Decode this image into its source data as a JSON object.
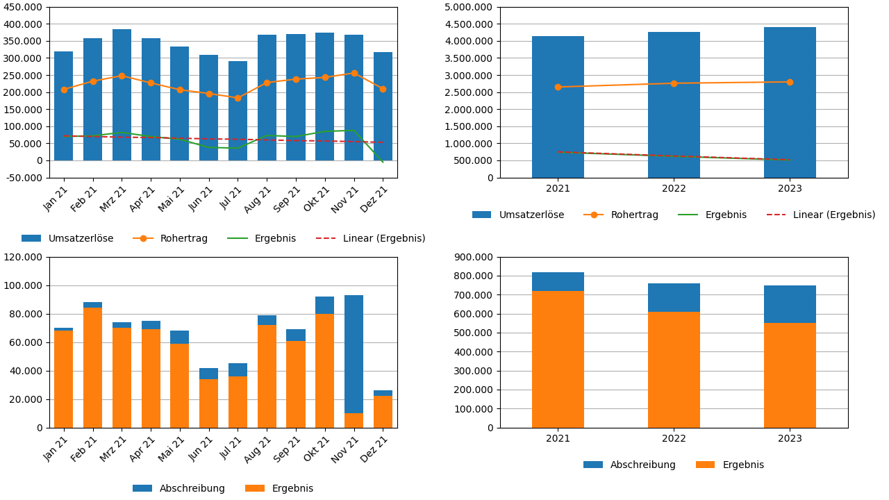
{
  "chart_data": [
    {
      "type": "bar",
      "categories": [
        "Jan 21",
        "Feb 21",
        "Mrz 21",
        "Apr 21",
        "Mai 21",
        "Jun 21",
        "Jul 21",
        "Aug 21",
        "Sep 21",
        "Okt 21",
        "Nov 21",
        "Dez 21"
      ],
      "series": [
        {
          "name": "Umsatzerlöse",
          "type": "bar",
          "values": [
            320000,
            358000,
            385000,
            358000,
            333000,
            310000,
            290000,
            368000,
            370000,
            375000,
            368000,
            318000
          ]
        },
        {
          "name": "Rohertrag",
          "type": "line",
          "marker": "o",
          "values": [
            208000,
            232000,
            248000,
            227000,
            207000,
            196000,
            183000,
            228000,
            238000,
            243000,
            256000,
            210000
          ]
        },
        {
          "name": "Ergebnis",
          "type": "line",
          "values": [
            70000,
            72000,
            82000,
            70000,
            62000,
            38000,
            36000,
            73000,
            70000,
            85000,
            88000,
            -5000
          ]
        },
        {
          "name": "Linear (Ergebnis)",
          "type": "line",
          "line_style": "dashed",
          "values": [
            72000,
            70000,
            68000,
            67000,
            65000,
            63000,
            62000,
            60000,
            58000,
            57000,
            55000,
            53000
          ]
        }
      ],
      "ylim": [
        -50000,
        450000
      ],
      "yticks": [
        {
          "value": -50000,
          "label": "-50.000"
        },
        0,
        {
          "value": 50000,
          "label": "50.000"
        },
        {
          "value": 100000,
          "label": "100.000"
        },
        {
          "value": 150000,
          "label": "150.000"
        },
        {
          "value": 200000,
          "label": "200.000"
        },
        {
          "value": 250000,
          "label": "250.000"
        },
        {
          "value": 300000,
          "label": "300.000"
        },
        {
          "value": 350000,
          "label": "350.000"
        },
        {
          "value": 400000,
          "label": "400.000"
        },
        {
          "value": 450000,
          "label": "450.000"
        }
      ],
      "grid": "y",
      "legend": "below"
    },
    {
      "type": "bar",
      "categories": [
        "2021",
        "2022",
        "2023"
      ],
      "series": [
        {
          "name": "Umsatzerlöse",
          "type": "bar",
          "values": [
            4130000,
            4270000,
            4400000
          ]
        },
        {
          "name": "Rohertrag",
          "type": "line",
          "marker": "o",
          "values": [
            2650000,
            2760000,
            2800000
          ]
        },
        {
          "name": "Ergebnis",
          "type": "line",
          "values": [
            740000,
            620000,
            510000
          ]
        },
        {
          "name": "Linear (Ergebnis)",
          "type": "line",
          "line_style": "dashed",
          "values": [
            750000,
            630000,
            520000
          ]
        }
      ],
      "ylim": [
        0,
        5000000
      ],
      "yticks": [
        0,
        {
          "value": 500000,
          "label": "500.000"
        },
        {
          "value": 1000000,
          "label": "1.000.000"
        },
        {
          "value": 1500000,
          "label": "1.500.000"
        },
        {
          "value": 2000000,
          "label": "2.000.000"
        },
        {
          "value": 2500000,
          "label": "2.500.000"
        },
        {
          "value": 3000000,
          "label": "3.000.000"
        },
        {
          "value": 3500000,
          "label": "3.500.000"
        },
        {
          "value": 4000000,
          "label": "4.000.000"
        },
        {
          "value": 4500000,
          "label": "4.500.000"
        },
        {
          "value": 5000000,
          "label": "5.000.000"
        }
      ],
      "grid": "y",
      "legend": "below"
    },
    {
      "type": "bar",
      "categories": [
        "Jan 21",
        "Feb 21",
        "Mrz 21",
        "Apr 21",
        "Mai 21",
        "Jun 21",
        "Jul 21",
        "Aug 21",
        "Sep 21",
        "Okt 21",
        "Nov 21",
        "Dez 21"
      ],
      "series": [
        {
          "name": "Abschreibung",
          "values": [
            70000,
            88000,
            74000,
            75000,
            68000,
            42000,
            45000,
            79000,
            69000,
            92000,
            93000,
            26000
          ]
        },
        {
          "name": "Ergebnis",
          "values": [
            68000,
            84000,
            70000,
            69000,
            59000,
            34000,
            36000,
            72000,
            61000,
            80000,
            10000,
            22000
          ]
        }
      ],
      "ylim": [
        0,
        120000
      ],
      "yticks": [
        0,
        {
          "value": 20000,
          "label": "20.000"
        },
        {
          "value": 40000,
          "label": "40.000"
        },
        {
          "value": 60000,
          "label": "60.000"
        },
        {
          "value": 80000,
          "label": "80.000"
        },
        {
          "value": 100000,
          "label": "100.000"
        },
        {
          "value": 120000,
          "label": "120.000"
        }
      ],
      "grid": "y",
      "legend": "below"
    },
    {
      "type": "bar",
      "categories": [
        "2021",
        "2022",
        "2023"
      ],
      "series": [
        {
          "name": "Abschreibung",
          "values": [
            820000,
            760000,
            750000
          ]
        },
        {
          "name": "Ergebnis",
          "values": [
            720000,
            610000,
            550000
          ]
        }
      ],
      "ylim": [
        0,
        900000
      ],
      "yticks": [
        0,
        {
          "value": 100000,
          "label": "100.000"
        },
        {
          "value": 200000,
          "label": "200.000"
        },
        {
          "value": 300000,
          "label": "300.000"
        },
        {
          "value": 400000,
          "label": "400.000"
        },
        {
          "value": 500000,
          "label": "500.000"
        },
        {
          "value": 600000,
          "label": "600.000"
        },
        {
          "value": 700000,
          "label": "700.000"
        },
        {
          "value": 800000,
          "label": "800.000"
        },
        {
          "value": 900000,
          "label": "900.000"
        }
      ],
      "grid": "y",
      "legend": "below"
    }
  ]
}
